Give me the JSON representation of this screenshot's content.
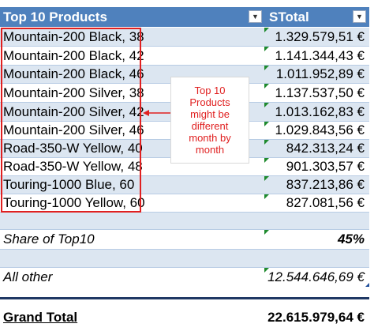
{
  "table": {
    "header": {
      "col_a": "Top 10 Products",
      "col_b": "STotal",
      "filter_icon": "dropdown-arrow-icon"
    },
    "rows": [
      {
        "product": "Mountain-200 Black, 38",
        "total": "1.329.579,51 €"
      },
      {
        "product": "Mountain-200 Black, 42",
        "total": "1.141.344,43 €"
      },
      {
        "product": "Mountain-200 Black, 46",
        "total": "1.011.952,89 €"
      },
      {
        "product": "Mountain-200 Silver, 38",
        "total": "1.137.537,50 €"
      },
      {
        "product": "Mountain-200 Silver, 42",
        "total": "1.013.162,83 €"
      },
      {
        "product": "Mountain-200 Silver, 46",
        "total": "1.029.843,56 €"
      },
      {
        "product": "Road-350-W Yellow, 40",
        "total": "842.313,24 €"
      },
      {
        "product": "Road-350-W Yellow, 48",
        "total": "901.303,57 €"
      },
      {
        "product": "Touring-1000 Blue, 60",
        "total": "837.213,86 €"
      },
      {
        "product": "Touring-1000 Yellow, 60",
        "total": "827.081,56 €"
      }
    ],
    "share": {
      "label": "Share of Top10",
      "value": "45%"
    },
    "all_other": {
      "label": "All other",
      "value": "12.544.646,69 €"
    },
    "grand_total": {
      "label": "Grand Total",
      "value": "22.615.979,64 €"
    }
  },
  "callout": {
    "lines": [
      "Top 10",
      "Products",
      "might be",
      "different",
      "month by",
      "month"
    ]
  },
  "colors": {
    "header_bg": "#4f81bd",
    "band_bg": "#dce6f1",
    "highlight_border": "#e02020",
    "callout_text": "#e02020",
    "error_marker": "#1e8a2e"
  }
}
